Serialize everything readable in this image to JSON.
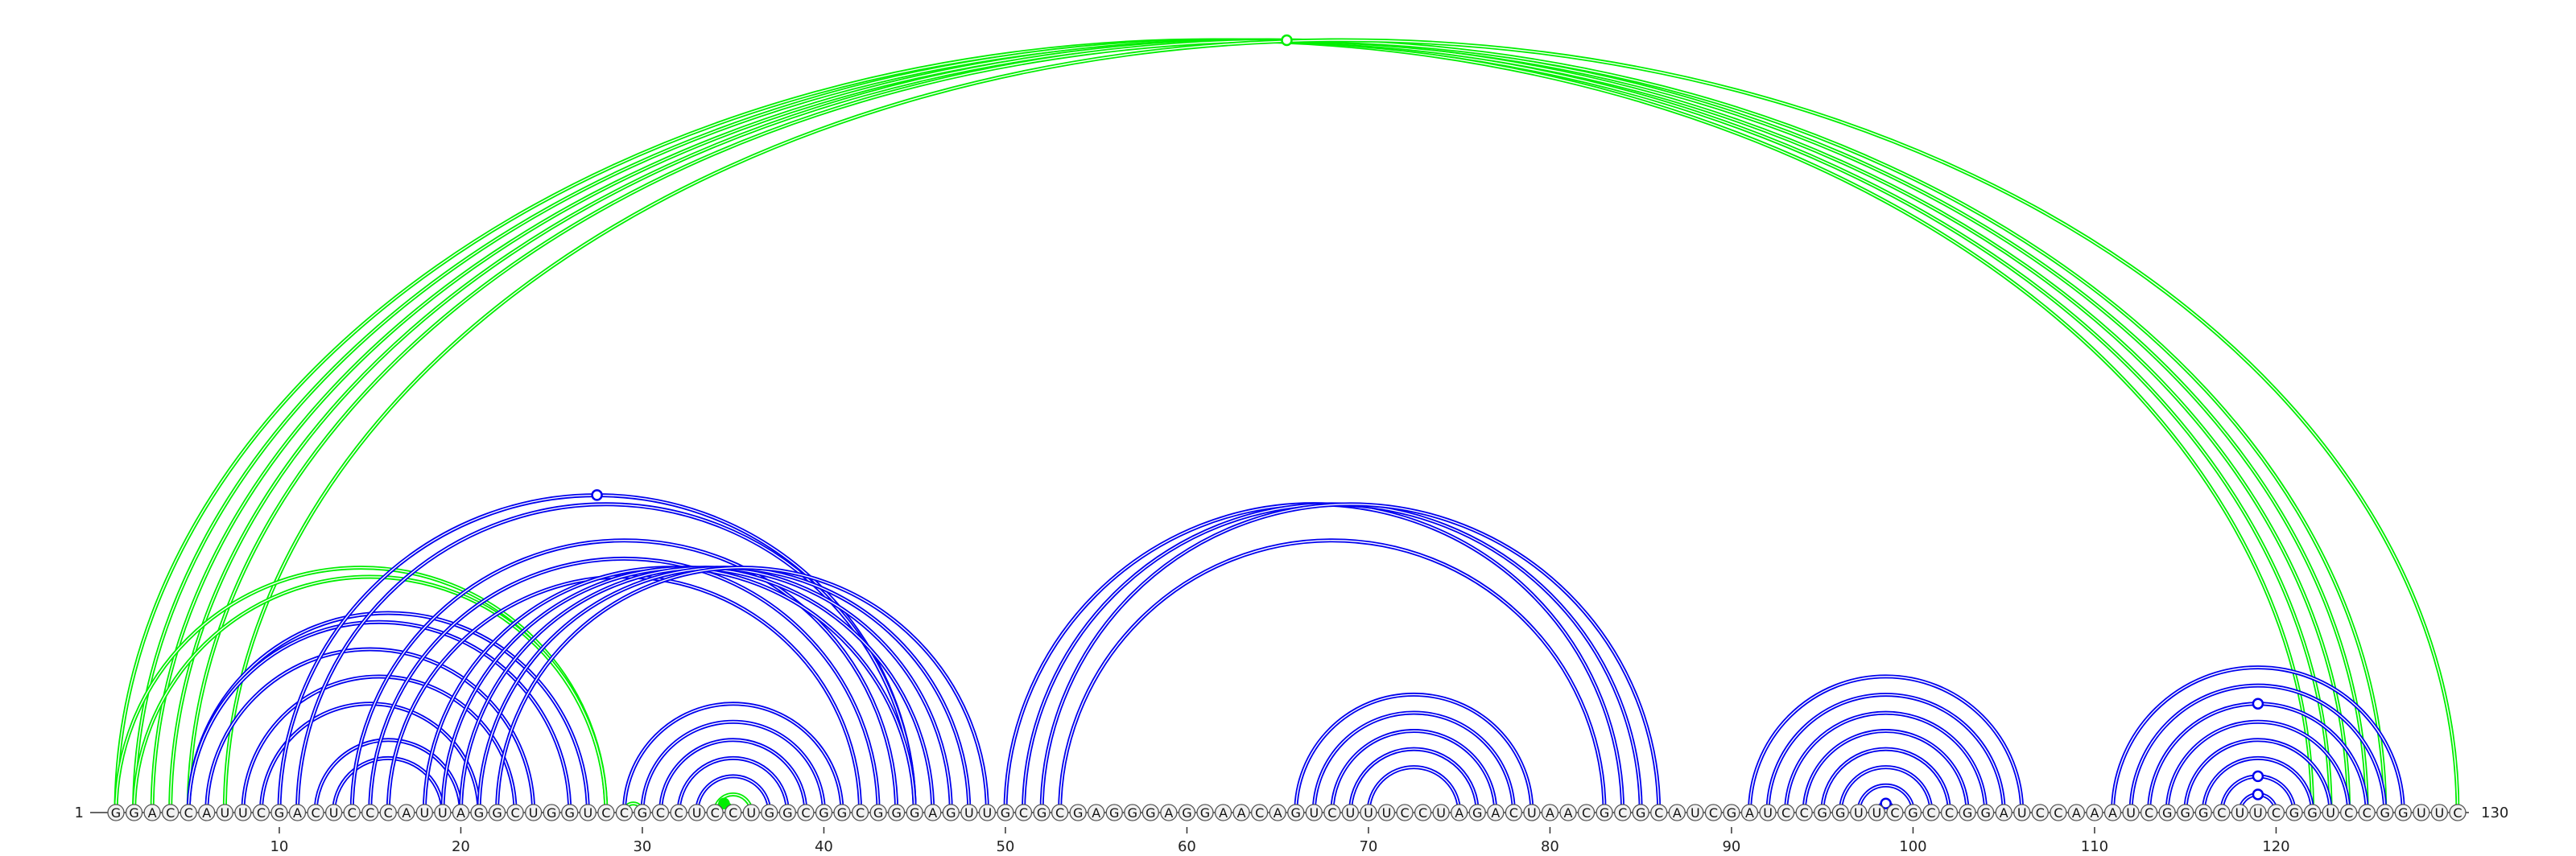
{
  "sequence": {
    "bases": "GGACCAUUCGACUCCCAUUAGGCUGGUCCGCCUCCUGGCGGCGGGAGUUGCGCGAGGGAGGAACAGUCUUUCCUAGACUAACGCGCAUCGAUCCGGUUCGCCGGAUCCAAAUCGGGCUUCGGUCCGGUUC",
    "start_label": "1",
    "end_label": "130",
    "ticks": [
      10,
      20,
      30,
      40,
      50,
      60,
      70,
      80,
      90,
      100,
      110,
      120
    ]
  },
  "colors": {
    "long_range": "#00ee00",
    "local": "#0000ee",
    "node_fill": "#f2f2f2",
    "node_stroke": "#555555"
  },
  "arcs": {
    "green": [
      [
        1,
        122
      ],
      [
        2,
        123
      ],
      [
        3,
        124
      ],
      [
        4,
        125
      ],
      [
        5,
        126
      ],
      [
        7,
        130
      ],
      [
        1,
        28
      ],
      [
        2,
        28
      ],
      [
        29,
        30
      ],
      [
        34,
        35
      ],
      [
        34,
        36
      ]
    ],
    "blue": [
      [
        5,
        27
      ],
      [
        5,
        26
      ],
      [
        6,
        24
      ],
      [
        8,
        23
      ],
      [
        9,
        21
      ],
      [
        12,
        20
      ],
      [
        13,
        19
      ],
      [
        10,
        45
      ],
      [
        11,
        45
      ],
      [
        14,
        44
      ],
      [
        15,
        43
      ],
      [
        16,
        42
      ],
      [
        18,
        45
      ],
      [
        19,
        46
      ],
      [
        20,
        47
      ],
      [
        21,
        48
      ],
      [
        22,
        49
      ],
      [
        29,
        41
      ],
      [
        30,
        40
      ],
      [
        31,
        39
      ],
      [
        32,
        38
      ],
      [
        33,
        37
      ],
      [
        50,
        84
      ],
      [
        51,
        85
      ],
      [
        52,
        86
      ],
      [
        53,
        83
      ],
      [
        66,
        79
      ],
      [
        67,
        78
      ],
      [
        68,
        77
      ],
      [
        69,
        76
      ],
      [
        70,
        75
      ],
      [
        91,
        106
      ],
      [
        92,
        105
      ],
      [
        93,
        104
      ],
      [
        94,
        103
      ],
      [
        95,
        102
      ],
      [
        96,
        101
      ],
      [
        97,
        100
      ],
      [
        98,
        99
      ],
      [
        111,
        127
      ],
      [
        112,
        126
      ],
      [
        113,
        125
      ],
      [
        114,
        124
      ],
      [
        115,
        123
      ],
      [
        116,
        122
      ],
      [
        117,
        121
      ],
      [
        118,
        120
      ]
    ],
    "markers": [
      {
        "i": 1,
        "j": 130,
        "color": "long_range",
        "filled": false
      },
      {
        "i": 10,
        "j": 45,
        "color": "local",
        "filled": false
      },
      {
        "i": 34,
        "j": 35,
        "color": "long_range",
        "filled": true
      },
      {
        "i": 98,
        "j": 99,
        "color": "local",
        "filled": false
      },
      {
        "i": 118,
        "j": 120,
        "color": "local",
        "filled": false
      },
      {
        "i": 117,
        "j": 121,
        "color": "local",
        "filled": false
      },
      {
        "i": 113,
        "j": 125,
        "color": "local",
        "filled": false
      }
    ]
  }
}
